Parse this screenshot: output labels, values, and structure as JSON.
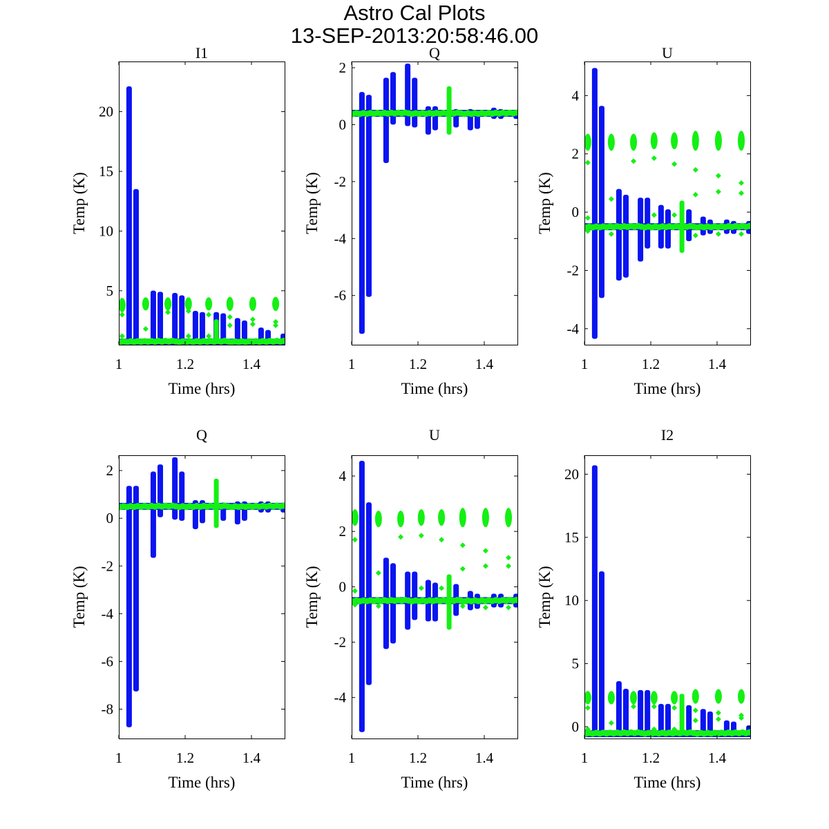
{
  "chart_data": {
    "type": "scatter",
    "title": "Astro Cal Plots",
    "subtitle": "13-SEP-2013:20:58:46.00",
    "colors": {
      "series_1": "#0a14f0",
      "series_2": "#14f014"
    },
    "subplots": [
      {
        "title": "I1",
        "xlabel": "Time (hrs)",
        "ylabel": "Temp (K)",
        "xlim": [
          1,
          1.5
        ],
        "ylim": [
          0.48,
          24.2
        ],
        "xticks": [
          1,
          1.2,
          1.4
        ],
        "xtick_labels": [
          "1",
          "1.2",
          "1.4"
        ],
        "yticks": [
          5,
          10,
          15,
          20
        ],
        "ytick_labels": [
          "5",
          "10",
          "15",
          "20"
        ],
        "baseline": {
          "blue": 0.7,
          "green": 0.75
        },
        "blue_spikes": [
          {
            "t": 1.031,
            "min": 0.7,
            "max": 22.0
          },
          {
            "t": 1.052,
            "min": 0.7,
            "max": 13.4
          },
          {
            "t": 1.104,
            "min": 0.7,
            "max": 4.9
          },
          {
            "t": 1.125,
            "min": 0.7,
            "max": 4.8
          },
          {
            "t": 1.169,
            "min": 0.7,
            "max": 4.7
          },
          {
            "t": 1.19,
            "min": 0.7,
            "max": 4.5
          },
          {
            "t": 1.231,
            "min": 0.7,
            "max": 3.2
          },
          {
            "t": 1.252,
            "min": 0.7,
            "max": 3.1
          },
          {
            "t": 1.294,
            "min": 0.7,
            "max": 3.1
          },
          {
            "t": 1.315,
            "min": 0.7,
            "max": 3.0
          },
          {
            "t": 1.358,
            "min": 0.7,
            "max": 2.6
          },
          {
            "t": 1.379,
            "min": 0.7,
            "max": 2.4
          },
          {
            "t": 1.429,
            "min": 0.7,
            "max": 1.8
          },
          {
            "t": 1.45,
            "min": 0.7,
            "max": 1.6
          },
          {
            "t": 1.496,
            "min": 0.7,
            "max": 1.3
          }
        ],
        "green_spikes": [
          {
            "t": 1.294,
            "min": 0.7,
            "max": 2.5
          }
        ],
        "green_clusters": [
          {
            "t": 1.01,
            "center": 3.8,
            "spread": 0.25,
            "outliers": [
              3.0,
              1.2
            ]
          },
          {
            "t": 1.081,
            "center": 3.9,
            "spread": 0.2,
            "outliers": [
              1.8
            ]
          },
          {
            "t": 1.148,
            "center": 3.9,
            "spread": 0.2,
            "outliers": [
              3.2
            ]
          },
          {
            "t": 1.21,
            "center": 3.9,
            "spread": 0.2,
            "outliers": [
              3.3,
              1.2
            ]
          },
          {
            "t": 1.271,
            "center": 3.9,
            "spread": 0.2,
            "outliers": [
              3.0,
              1.2
            ]
          },
          {
            "t": 1.335,
            "center": 3.9,
            "spread": 0.25,
            "outliers": [
              2.8,
              2.1
            ]
          },
          {
            "t": 1.404,
            "center": 3.9,
            "spread": 0.25,
            "outliers": [
              2.6,
              2.2
            ]
          },
          {
            "t": 1.473,
            "center": 3.9,
            "spread": 0.25,
            "outliers": [
              2.4,
              2.1
            ]
          }
        ]
      },
      {
        "title": "Q",
        "xlabel": "Time (hrs)",
        "ylabel": "Temp (K)",
        "xlim": [
          1,
          1.5
        ],
        "ylim": [
          -7.73,
          2.22
        ],
        "xticks": [
          1,
          1.2,
          1.4
        ],
        "xtick_labels": [
          "1",
          "1.2",
          "1.4"
        ],
        "yticks": [
          -6,
          -4,
          -2,
          0,
          2
        ],
        "ytick_labels": [
          "-6",
          "-4",
          "-2",
          "0",
          "2"
        ],
        "baseline": {
          "blue": 0.4,
          "green": 0.4
        },
        "blue_spikes": [
          {
            "t": 1.031,
            "min": -7.3,
            "max": 1.1
          },
          {
            "t": 1.052,
            "min": -6.0,
            "max": 1.0
          },
          {
            "t": 1.104,
            "min": -1.3,
            "max": 1.6
          },
          {
            "t": 1.125,
            "min": 0.05,
            "max": 1.8
          },
          {
            "t": 1.169,
            "min": 0.0,
            "max": 2.1
          },
          {
            "t": 1.19,
            "min": -0.05,
            "max": 1.6
          },
          {
            "t": 1.231,
            "min": -0.3,
            "max": 0.6
          },
          {
            "t": 1.252,
            "min": -0.15,
            "max": 0.6
          },
          {
            "t": 1.315,
            "min": -0.05,
            "max": 0.5
          },
          {
            "t": 1.358,
            "min": -0.15,
            "max": 0.5
          },
          {
            "t": 1.379,
            "min": -0.1,
            "max": 0.45
          },
          {
            "t": 1.429,
            "min": 0.25,
            "max": 0.55
          },
          {
            "t": 1.45,
            "min": 0.25,
            "max": 0.5
          },
          {
            "t": 1.496,
            "min": 0.25,
            "max": 0.45
          }
        ],
        "green_spikes": [
          {
            "t": 1.294,
            "min": -0.3,
            "max": 1.3
          }
        ],
        "green_clusters": []
      },
      {
        "title": "U",
        "xlabel": "Time (hrs)",
        "ylabel": "Temp (K)",
        "xlim": [
          1,
          1.5
        ],
        "ylim": [
          -4.55,
          5.17
        ],
        "xticks": [
          1,
          1.2,
          1.4
        ],
        "xtick_labels": [
          "1",
          "1.2",
          "1.4"
        ],
        "yticks": [
          -4,
          -2,
          0,
          2,
          4
        ],
        "ytick_labels": [
          "-4",
          "-2",
          "0",
          "2",
          "4"
        ],
        "baseline": {
          "blue": -0.5,
          "green": -0.5
        },
        "blue_spikes": [
          {
            "t": 1.031,
            "min": -4.3,
            "max": 4.9
          },
          {
            "t": 1.052,
            "min": -2.9,
            "max": 3.6
          },
          {
            "t": 1.104,
            "min": -2.3,
            "max": 0.75
          },
          {
            "t": 1.125,
            "min": -2.2,
            "max": 0.55
          },
          {
            "t": 1.169,
            "min": -1.65,
            "max": 0.45
          },
          {
            "t": 1.19,
            "min": -1.2,
            "max": 0.45
          },
          {
            "t": 1.231,
            "min": -1.2,
            "max": 0.2
          },
          {
            "t": 1.252,
            "min": -1.2,
            "max": 0.05
          },
          {
            "t": 1.315,
            "min": -0.95,
            "max": 0.05
          },
          {
            "t": 1.358,
            "min": -0.75,
            "max": -0.2
          },
          {
            "t": 1.379,
            "min": -0.7,
            "max": -0.3
          },
          {
            "t": 1.429,
            "min": -0.7,
            "max": -0.3
          },
          {
            "t": 1.45,
            "min": -0.7,
            "max": -0.35
          },
          {
            "t": 1.496,
            "min": -0.7,
            "max": -0.35
          }
        ],
        "green_spikes": [
          {
            "t": 1.294,
            "min": -1.35,
            "max": 0.35
          }
        ],
        "green_clusters": [
          {
            "t": 1.01,
            "center": 2.4,
            "spread": 0.15,
            "outliers": [
              1.7,
              -0.2,
              -0.65
            ]
          },
          {
            "t": 1.081,
            "center": 2.4,
            "spread": 0.15,
            "outliers": [
              0.45,
              -0.75
            ]
          },
          {
            "t": 1.148,
            "center": 2.4,
            "spread": 0.15,
            "outliers": [
              1.75
            ]
          },
          {
            "t": 1.21,
            "center": 2.45,
            "spread": 0.15,
            "outliers": [
              1.85,
              -0.1
            ]
          },
          {
            "t": 1.271,
            "center": 2.45,
            "spread": 0.15,
            "outliers": [
              1.65,
              -0.1
            ]
          },
          {
            "t": 1.335,
            "center": 2.45,
            "spread": 0.2,
            "outliers": [
              1.45,
              0.6,
              -0.8
            ]
          },
          {
            "t": 1.404,
            "center": 2.45,
            "spread": 0.2,
            "outliers": [
              1.25,
              0.7,
              -0.75
            ]
          },
          {
            "t": 1.473,
            "center": 2.45,
            "spread": 0.2,
            "outliers": [
              1.0,
              0.65,
              -0.75
            ]
          }
        ]
      },
      {
        "title": "Q",
        "xlabel": "Time (hrs)",
        "ylabel": "Temp (K)",
        "xlim": [
          1,
          1.5
        ],
        "ylim": [
          -9.23,
          2.64
        ],
        "xticks": [
          1,
          1.2,
          1.4
        ],
        "xtick_labels": [
          "1",
          "1.2",
          "1.4"
        ],
        "yticks": [
          -8,
          -6,
          -4,
          -2,
          0,
          2
        ],
        "ytick_labels": [
          "-8",
          "-6",
          "-4",
          "-2",
          "0",
          "2"
        ],
        "baseline": {
          "blue": 0.5,
          "green": 0.5
        },
        "blue_spikes": [
          {
            "t": 1.031,
            "min": -8.7,
            "max": 1.3
          },
          {
            "t": 1.052,
            "min": -7.2,
            "max": 1.3
          },
          {
            "t": 1.104,
            "min": -1.6,
            "max": 1.9
          },
          {
            "t": 1.125,
            "min": 0.1,
            "max": 2.2
          },
          {
            "t": 1.169,
            "min": 0.0,
            "max": 2.5
          },
          {
            "t": 1.19,
            "min": -0.05,
            "max": 1.9
          },
          {
            "t": 1.231,
            "min": -0.4,
            "max": 0.7
          },
          {
            "t": 1.252,
            "min": -0.15,
            "max": 0.7
          },
          {
            "t": 1.315,
            "min": -0.05,
            "max": 0.6
          },
          {
            "t": 1.358,
            "min": -0.2,
            "max": 0.65
          },
          {
            "t": 1.379,
            "min": -0.05,
            "max": 0.65
          },
          {
            "t": 1.429,
            "min": 0.3,
            "max": 0.65
          },
          {
            "t": 1.45,
            "min": 0.3,
            "max": 0.65
          },
          {
            "t": 1.496,
            "min": 0.3,
            "max": 0.6
          }
        ],
        "green_spikes": [
          {
            "t": 1.294,
            "min": -0.35,
            "max": 1.6
          }
        ],
        "green_clusters": []
      },
      {
        "title": "U",
        "xlabel": "Time (hrs)",
        "ylabel": "Temp (K)",
        "xlim": [
          1,
          1.5
        ],
        "ylim": [
          -5.48,
          4.75
        ],
        "xticks": [
          1,
          1.2,
          1.4
        ],
        "xtick_labels": [
          "1",
          "1.2",
          "1.4"
        ],
        "yticks": [
          -4,
          -2,
          0,
          2,
          4
        ],
        "ytick_labels": [
          "-4",
          "-2",
          "0",
          "2",
          "4"
        ],
        "baseline": {
          "blue": -0.5,
          "green": -0.5
        },
        "blue_spikes": [
          {
            "t": 1.031,
            "min": -5.2,
            "max": 4.5
          },
          {
            "t": 1.052,
            "min": -3.5,
            "max": 3.0
          },
          {
            "t": 1.104,
            "min": -2.2,
            "max": 1.0
          },
          {
            "t": 1.125,
            "min": -2.0,
            "max": 0.8
          },
          {
            "t": 1.169,
            "min": -1.5,
            "max": 0.5
          },
          {
            "t": 1.19,
            "min": -1.15,
            "max": 0.5
          },
          {
            "t": 1.231,
            "min": -1.2,
            "max": 0.2
          },
          {
            "t": 1.252,
            "min": -1.2,
            "max": 0.1
          },
          {
            "t": 1.315,
            "min": -1.0,
            "max": 0.05
          },
          {
            "t": 1.358,
            "min": -0.8,
            "max": -0.2
          },
          {
            "t": 1.379,
            "min": -0.75,
            "max": -0.3
          },
          {
            "t": 1.429,
            "min": -0.7,
            "max": -0.3
          },
          {
            "t": 1.45,
            "min": -0.7,
            "max": -0.3
          },
          {
            "t": 1.496,
            "min": -0.7,
            "max": -0.3
          }
        ],
        "green_spikes": [
          {
            "t": 1.294,
            "min": -1.5,
            "max": 0.4
          }
        ],
        "green_clusters": [
          {
            "t": 1.01,
            "center": 2.5,
            "spread": 0.15,
            "outliers": [
              1.7,
              -0.15,
              -0.65
            ]
          },
          {
            "t": 1.081,
            "center": 2.45,
            "spread": 0.15,
            "outliers": [
              0.5,
              -0.7
            ]
          },
          {
            "t": 1.148,
            "center": 2.45,
            "spread": 0.15,
            "outliers": [
              1.8
            ]
          },
          {
            "t": 1.21,
            "center": 2.5,
            "spread": 0.15,
            "outliers": [
              1.85,
              -0.05
            ]
          },
          {
            "t": 1.271,
            "center": 2.5,
            "spread": 0.15,
            "outliers": [
              1.7,
              -0.05
            ]
          },
          {
            "t": 1.335,
            "center": 2.5,
            "spread": 0.2,
            "outliers": [
              1.5,
              0.65,
              -0.7
            ]
          },
          {
            "t": 1.404,
            "center": 2.5,
            "spread": 0.2,
            "outliers": [
              1.3,
              0.75,
              -0.75
            ]
          },
          {
            "t": 1.473,
            "center": 2.5,
            "spread": 0.2,
            "outliers": [
              1.05,
              0.75,
              -0.75
            ]
          }
        ]
      },
      {
        "title": "I2",
        "xlabel": "Time (hrs)",
        "ylabel": "Temp (K)",
        "xlim": [
          1,
          1.5
        ],
        "ylim": [
          -0.93,
          21.5
        ],
        "xticks": [
          1,
          1.2,
          1.4
        ],
        "xtick_labels": [
          "1",
          "1.2",
          "1.4"
        ],
        "yticks": [
          0,
          5,
          10,
          15,
          20
        ],
        "ytick_labels": [
          "0",
          "5",
          "10",
          "15",
          "20"
        ],
        "baseline": {
          "blue": -0.55,
          "green": -0.5
        },
        "blue_spikes": [
          {
            "t": 1.031,
            "min": -0.55,
            "max": 20.6
          },
          {
            "t": 1.052,
            "min": -0.55,
            "max": 12.2
          },
          {
            "t": 1.104,
            "min": -0.55,
            "max": 3.5
          },
          {
            "t": 1.125,
            "min": -0.55,
            "max": 2.9
          },
          {
            "t": 1.169,
            "min": -0.55,
            "max": 2.8
          },
          {
            "t": 1.19,
            "min": -0.55,
            "max": 2.8
          },
          {
            "t": 1.231,
            "min": -0.55,
            "max": 1.7
          },
          {
            "t": 1.252,
            "min": -0.55,
            "max": 1.7
          },
          {
            "t": 1.315,
            "min": -0.55,
            "max": 1.6
          },
          {
            "t": 1.358,
            "min": -0.55,
            "max": 1.3
          },
          {
            "t": 1.379,
            "min": -0.55,
            "max": 1.1
          },
          {
            "t": 1.429,
            "min": -0.55,
            "max": 0.4
          },
          {
            "t": 1.45,
            "min": -0.55,
            "max": 0.3
          },
          {
            "t": 1.496,
            "min": -0.55,
            "max": 0.0
          }
        ],
        "green_spikes": [
          {
            "t": 1.294,
            "min": -0.5,
            "max": 2.5
          }
        ],
        "green_clusters": [
          {
            "t": 1.01,
            "center": 2.3,
            "spread": 0.2,
            "outliers": [
              1.5,
              -0.2
            ]
          },
          {
            "t": 1.081,
            "center": 2.3,
            "spread": 0.2,
            "outliers": [
              0.3
            ]
          },
          {
            "t": 1.148,
            "center": 2.3,
            "spread": 0.2,
            "outliers": [
              1.6
            ]
          },
          {
            "t": 1.21,
            "center": 2.3,
            "spread": 0.2,
            "outliers": [
              1.6,
              -0.2
            ]
          },
          {
            "t": 1.271,
            "center": 2.3,
            "spread": 0.2,
            "outliers": [
              1.5,
              -0.2
            ]
          },
          {
            "t": 1.335,
            "center": 2.4,
            "spread": 0.25,
            "outliers": [
              1.3,
              0.5
            ]
          },
          {
            "t": 1.404,
            "center": 2.4,
            "spread": 0.25,
            "outliers": [
              1.1,
              0.6
            ]
          },
          {
            "t": 1.473,
            "center": 2.4,
            "spread": 0.25,
            "outliers": [
              0.9,
              0.7
            ]
          }
        ]
      }
    ]
  }
}
